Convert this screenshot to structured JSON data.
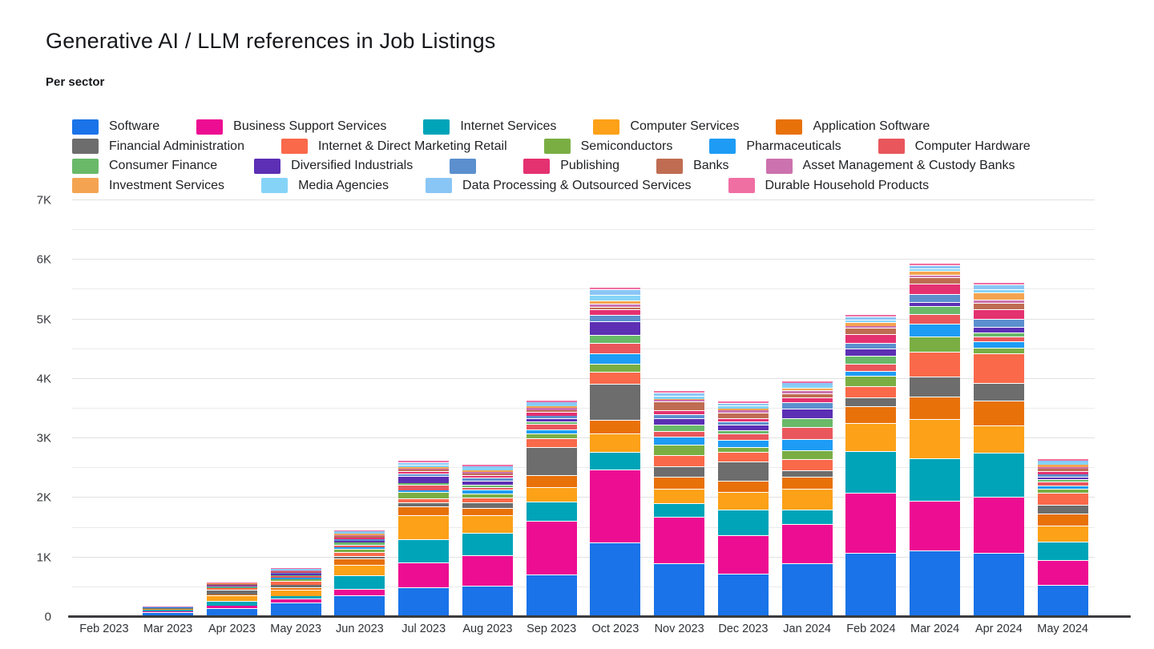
{
  "page": {
    "title": "Generative AI / LLM references in Job Listings",
    "subtitle": "Per sector"
  },
  "chart_data": {
    "type": "bar",
    "variant": "stacked-vertical",
    "title": "Generative AI / LLM references in Job Listings",
    "subtitle": "Per sector",
    "xlabel": "",
    "ylabel": "",
    "ylim": [
      0,
      7000
    ],
    "ytick_values": [
      0,
      1000,
      2000,
      3000,
      4000,
      5000,
      6000,
      7000
    ],
    "ytick_labels": [
      "0",
      "1K",
      "2K",
      "3K",
      "4K",
      "5K",
      "6K",
      "7K"
    ],
    "grid": "horizontal major at 1K, minor at 0.5K",
    "legend_position": "top",
    "categories": [
      "Feb 2023",
      "Mar 2023",
      "Apr 2023",
      "May 2023",
      "Jun 2023",
      "Jul 2023",
      "Aug 2023",
      "Sep 2023",
      "Oct 2023",
      "Nov 2023",
      "Dec 2023",
      "Jan 2024",
      "Feb 2024",
      "Mar 2024",
      "Apr 2024",
      "May 2024"
    ],
    "totals_approx": [
      32,
      180,
      575,
      810,
      1455,
      2650,
      2565,
      3640,
      5550,
      3795,
      3625,
      3960,
      5090,
      5955,
      5615,
      2645
    ],
    "series": [
      {
        "name": "Software",
        "color": "#1A73E8",
        "values": [
          10,
          80,
          155,
          245,
          360,
          495,
          530,
          720,
          1250,
          900,
          730,
          900,
          1080,
          1120,
          1080,
          540
        ]
      },
      {
        "name": "Business Support Services",
        "color": "#ED0D92",
        "values": [
          5,
          20,
          40,
          65,
          110,
          425,
          510,
          900,
          1230,
          785,
          640,
          660,
          1010,
          830,
          945,
          410
        ]
      },
      {
        "name": "Internet Services",
        "color": "#00A4B8",
        "values": [
          3,
          20,
          70,
          35,
          225,
          380,
          380,
          315,
          290,
          225,
          440,
          240,
          695,
          720,
          740,
          315
        ]
      },
      {
        "name": "Computer Services",
        "color": "#FCA118",
        "values": [
          3,
          15,
          95,
          110,
          180,
          405,
          290,
          245,
          315,
          245,
          285,
          360,
          470,
          650,
          450,
          270
        ]
      },
      {
        "name": "Application Software",
        "color": "#E8710A",
        "values": [
          2,
          5,
          20,
          45,
          110,
          155,
          120,
          200,
          225,
          200,
          200,
          200,
          290,
          380,
          425,
          200
        ]
      },
      {
        "name": "Financial Administration",
        "color": "#6D6D6D",
        "values": [
          2,
          5,
          80,
          40,
          45,
          65,
          90,
          470,
          605,
          180,
          315,
          110,
          145,
          335,
          290,
          155
        ]
      },
      {
        "name": "Internet & Direct Marketing Retail",
        "color": "#F9694A",
        "values": [
          2,
          5,
          25,
          65,
          65,
          65,
          90,
          155,
          200,
          180,
          160,
          180,
          190,
          425,
          495,
          200
        ]
      },
      {
        "name": "Semiconductors",
        "color": "#7AAE43",
        "values": [
          1,
          3,
          10,
          25,
          45,
          110,
          65,
          80,
          135,
          180,
          80,
          155,
          180,
          245,
          105,
          60
        ]
      },
      {
        "name": "Pharmaceuticals",
        "color": "#1E9CF5",
        "values": [
          1,
          3,
          15,
          30,
          35,
          30,
          60,
          70,
          180,
          135,
          120,
          180,
          75,
          225,
          100,
          60
        ]
      },
      {
        "name": "Computer Hardware",
        "color": "#E9575D",
        "values": [
          1,
          3,
          10,
          25,
          45,
          90,
          45,
          90,
          180,
          90,
          110,
          200,
          125,
          155,
          80,
          60
        ]
      },
      {
        "name": "Consumer Finance",
        "color": "#69B969",
        "values": [
          0,
          2,
          5,
          20,
          35,
          30,
          45,
          45,
          135,
          110,
          65,
          155,
          135,
          135,
          75,
          45
        ]
      },
      {
        "name": "Diversified Industrials",
        "color": "#5C2FB4",
        "values": [
          0,
          2,
          10,
          20,
          30,
          120,
          70,
          55,
          225,
          110,
          90,
          155,
          110,
          65,
          90,
          45
        ]
      },
      {
        "name": "",
        "color": "#5B8FCE",
        "values": [
          0,
          2,
          5,
          15,
          25,
          45,
          45,
          35,
          110,
          65,
          55,
          110,
          105,
          135,
          135,
          40
        ]
      },
      {
        "name": "Publishing",
        "color": "#E43170",
        "values": [
          0,
          2,
          5,
          15,
          25,
          45,
          45,
          65,
          90,
          65,
          55,
          90,
          145,
          180,
          155,
          45
        ]
      },
      {
        "name": "Banks",
        "color": "#BF6C52",
        "values": [
          2,
          5,
          5,
          15,
          25,
          20,
          30,
          35,
          45,
          155,
          90,
          65,
          110,
          110,
          110,
          40
        ]
      },
      {
        "name": "Asset Management & Custody Banks",
        "color": "#CC72AE",
        "values": [
          0,
          2,
          5,
          10,
          20,
          15,
          30,
          30,
          45,
          20,
          35,
          45,
          30,
          45,
          65,
          35
        ]
      },
      {
        "name": "Investment Services",
        "color": "#F4A451",
        "values": [
          0,
          2,
          5,
          10,
          20,
          20,
          30,
          35,
          65,
          20,
          35,
          45,
          60,
          65,
          110,
          35
        ]
      },
      {
        "name": "Media Agencies",
        "color": "#85D4F8",
        "values": [
          0,
          2,
          5,
          10,
          20,
          45,
          30,
          30,
          90,
          55,
          45,
          40,
          45,
          45,
          65,
          35
        ]
      },
      {
        "name": "Data Processing & Outsourced Services",
        "color": "#8AC6F5",
        "values": [
          0,
          2,
          5,
          10,
          20,
          45,
          30,
          40,
          90,
          55,
          45,
          40,
          45,
          45,
          70,
          35
        ]
      },
      {
        "name": "Durable Household Products",
        "color": "#F06FA3",
        "values": [
          0,
          2,
          5,
          10,
          15,
          45,
          30,
          25,
          45,
          20,
          30,
          30,
          45,
          45,
          30,
          20
        ]
      }
    ],
    "legend_rows": [
      [
        0,
        1,
        2,
        3,
        4
      ],
      [
        5,
        6,
        7,
        8,
        9
      ],
      [
        10,
        11,
        12,
        13,
        14,
        15
      ],
      [
        16,
        17,
        18,
        19
      ]
    ]
  }
}
